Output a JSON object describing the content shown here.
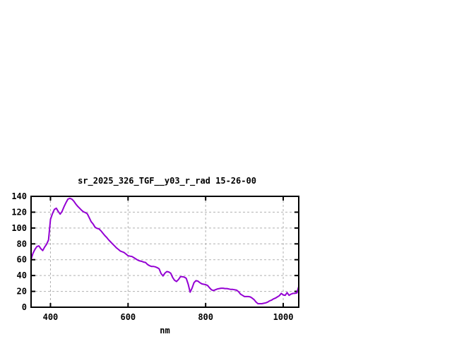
{
  "chart": {
    "title": "sr_2025_326_TGF__y03_r_rad 15-26-00",
    "xlabel": "nm"
  },
  "colors": {
    "line": "#9400d3",
    "grid": "#b0b0b0",
    "frame": "#000000",
    "text": "#000000",
    "background": "#ffffff"
  },
  "chart_data": {
    "type": "line",
    "title": "sr_2025_326_TGF__y03_r_rad 15-26-00",
    "xlabel": "nm",
    "ylabel": "",
    "xlim": [
      350,
      1040
    ],
    "ylim": [
      0,
      140
    ],
    "x_ticks": [
      400,
      600,
      800,
      1000
    ],
    "y_ticks": [
      0,
      20,
      40,
      60,
      80,
      100,
      120,
      140
    ],
    "grid": true,
    "legend": "none",
    "line_color": "#9400d3",
    "series": [
      {
        "name": "sr_2025_326_TGF__y03_r_rad",
        "x": [
          350,
          355,
          360,
          365,
          370,
          375,
          380,
          385,
          390,
          395,
          400,
          405,
          410,
          415,
          420,
          425,
          430,
          435,
          440,
          445,
          450,
          455,
          460,
          465,
          470,
          475,
          480,
          485,
          490,
          495,
          500,
          505,
          510,
          515,
          520,
          525,
          530,
          535,
          540,
          545,
          550,
          555,
          560,
          565,
          570,
          575,
          580,
          585,
          590,
          595,
          600,
          605,
          610,
          615,
          620,
          625,
          630,
          635,
          640,
          645,
          650,
          655,
          660,
          665,
          670,
          675,
          680,
          685,
          690,
          695,
          700,
          705,
          710,
          715,
          720,
          725,
          730,
          735,
          740,
          745,
          750,
          755,
          760,
          765,
          770,
          775,
          780,
          785,
          790,
          795,
          800,
          805,
          810,
          815,
          820,
          825,
          830,
          835,
          840,
          845,
          850,
          855,
          860,
          865,
          870,
          875,
          880,
          885,
          890,
          895,
          900,
          905,
          910,
          915,
          920,
          925,
          930,
          935,
          940,
          945,
          950,
          955,
          960,
          965,
          970,
          975,
          980,
          985,
          990,
          995,
          1000,
          1005,
          1010,
          1015,
          1020,
          1025,
          1030,
          1035,
          1040
        ],
        "y": [
          60.5,
          68,
          73,
          76.5,
          77.5,
          74,
          71.5,
          76,
          79.5,
          85,
          111,
          118,
          123.5,
          125,
          121,
          117.5,
          121,
          127,
          132,
          136.5,
          137.5,
          136.5,
          134,
          130.5,
          127.5,
          125,
          122.5,
          120.5,
          119.5,
          118,
          113,
          108,
          105,
          101,
          99.5,
          99,
          96.5,
          93.5,
          90.5,
          88,
          85,
          82.5,
          80,
          77.5,
          75,
          73,
          71,
          70,
          69,
          67,
          65,
          64.5,
          64,
          62.5,
          61,
          59.5,
          58.5,
          58,
          57,
          56.5,
          54,
          52.5,
          51.5,
          51.5,
          51,
          50,
          48.5,
          42.5,
          39.5,
          43,
          45,
          44.5,
          43,
          37.5,
          34,
          32.5,
          35,
          38.5,
          38.5,
          38,
          36.5,
          29,
          19,
          24,
          31,
          33.5,
          33,
          31,
          29.5,
          29,
          28.5,
          27.5,
          24.5,
          22,
          21,
          22,
          23,
          23.5,
          24,
          24,
          23.5,
          23.5,
          23,
          22.5,
          22.5,
          22,
          21.5,
          19.5,
          16.5,
          15,
          13.5,
          13.5,
          13.5,
          13,
          11.5,
          9.5,
          6.5,
          4.5,
          4.5,
          4.5,
          5,
          5.5,
          6.5,
          8,
          9,
          10.5,
          11.5,
          13,
          14.5,
          17.5,
          15.5,
          15,
          18.5,
          15,
          16.5,
          17.5,
          17.5,
          18,
          26
        ]
      }
    ]
  }
}
